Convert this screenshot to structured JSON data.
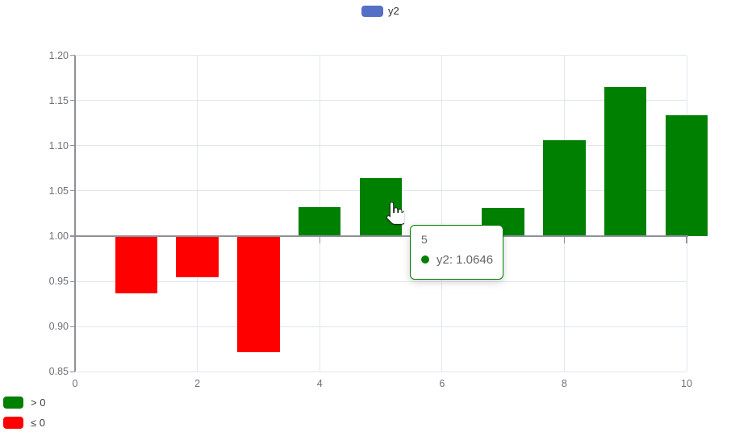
{
  "legend_top": {
    "label": "y2",
    "swatch_color": "#5470c6"
  },
  "chart_data": {
    "type": "bar",
    "title": "",
    "xlabel": "",
    "ylabel": "",
    "x": [
      1,
      2,
      3,
      4,
      5,
      6,
      7,
      8,
      9,
      10
    ],
    "series": [
      {
        "name": "y2",
        "values": [
          0.9371,
          0.9549,
          0.8713,
          1.0325,
          1.0646,
          null,
          1.0314,
          1.1065,
          1.1652,
          1.1341
        ]
      }
    ],
    "baseline": 1.0,
    "ylim": [
      0.85,
      1.2
    ],
    "xlim": [
      0,
      10
    ],
    "ytick_values": [
      0.85,
      0.9,
      0.95,
      1.0,
      1.05,
      1.1,
      1.15,
      1.2
    ],
    "ytick_labels": [
      "0.85",
      "0.90",
      "0.95",
      "1.00",
      "1.05",
      "1.10",
      "1.15",
      "1.20"
    ],
    "xtick_values": [
      0,
      2,
      4,
      6,
      8,
      10
    ],
    "xtick_labels": [
      "0",
      "2",
      "4",
      "6",
      "8",
      "10"
    ],
    "positive_color": "#008000",
    "negative_color": "#ff0000",
    "grid": true,
    "legend_position": "top-center"
  },
  "tooltip": {
    "title": "5",
    "label": "y2: 1.0646",
    "dot_color": "#008000",
    "border_color": "#008000"
  },
  "legend_bottom": {
    "items": [
      {
        "label": "> 0",
        "color": "#008000"
      },
      {
        "label": "≤ 0",
        "color": "#ff0000"
      }
    ]
  },
  "colors": {
    "axis_line": "#8d919a",
    "grid_line": "#e0e6f1",
    "tick_label": "#6e7079"
  }
}
